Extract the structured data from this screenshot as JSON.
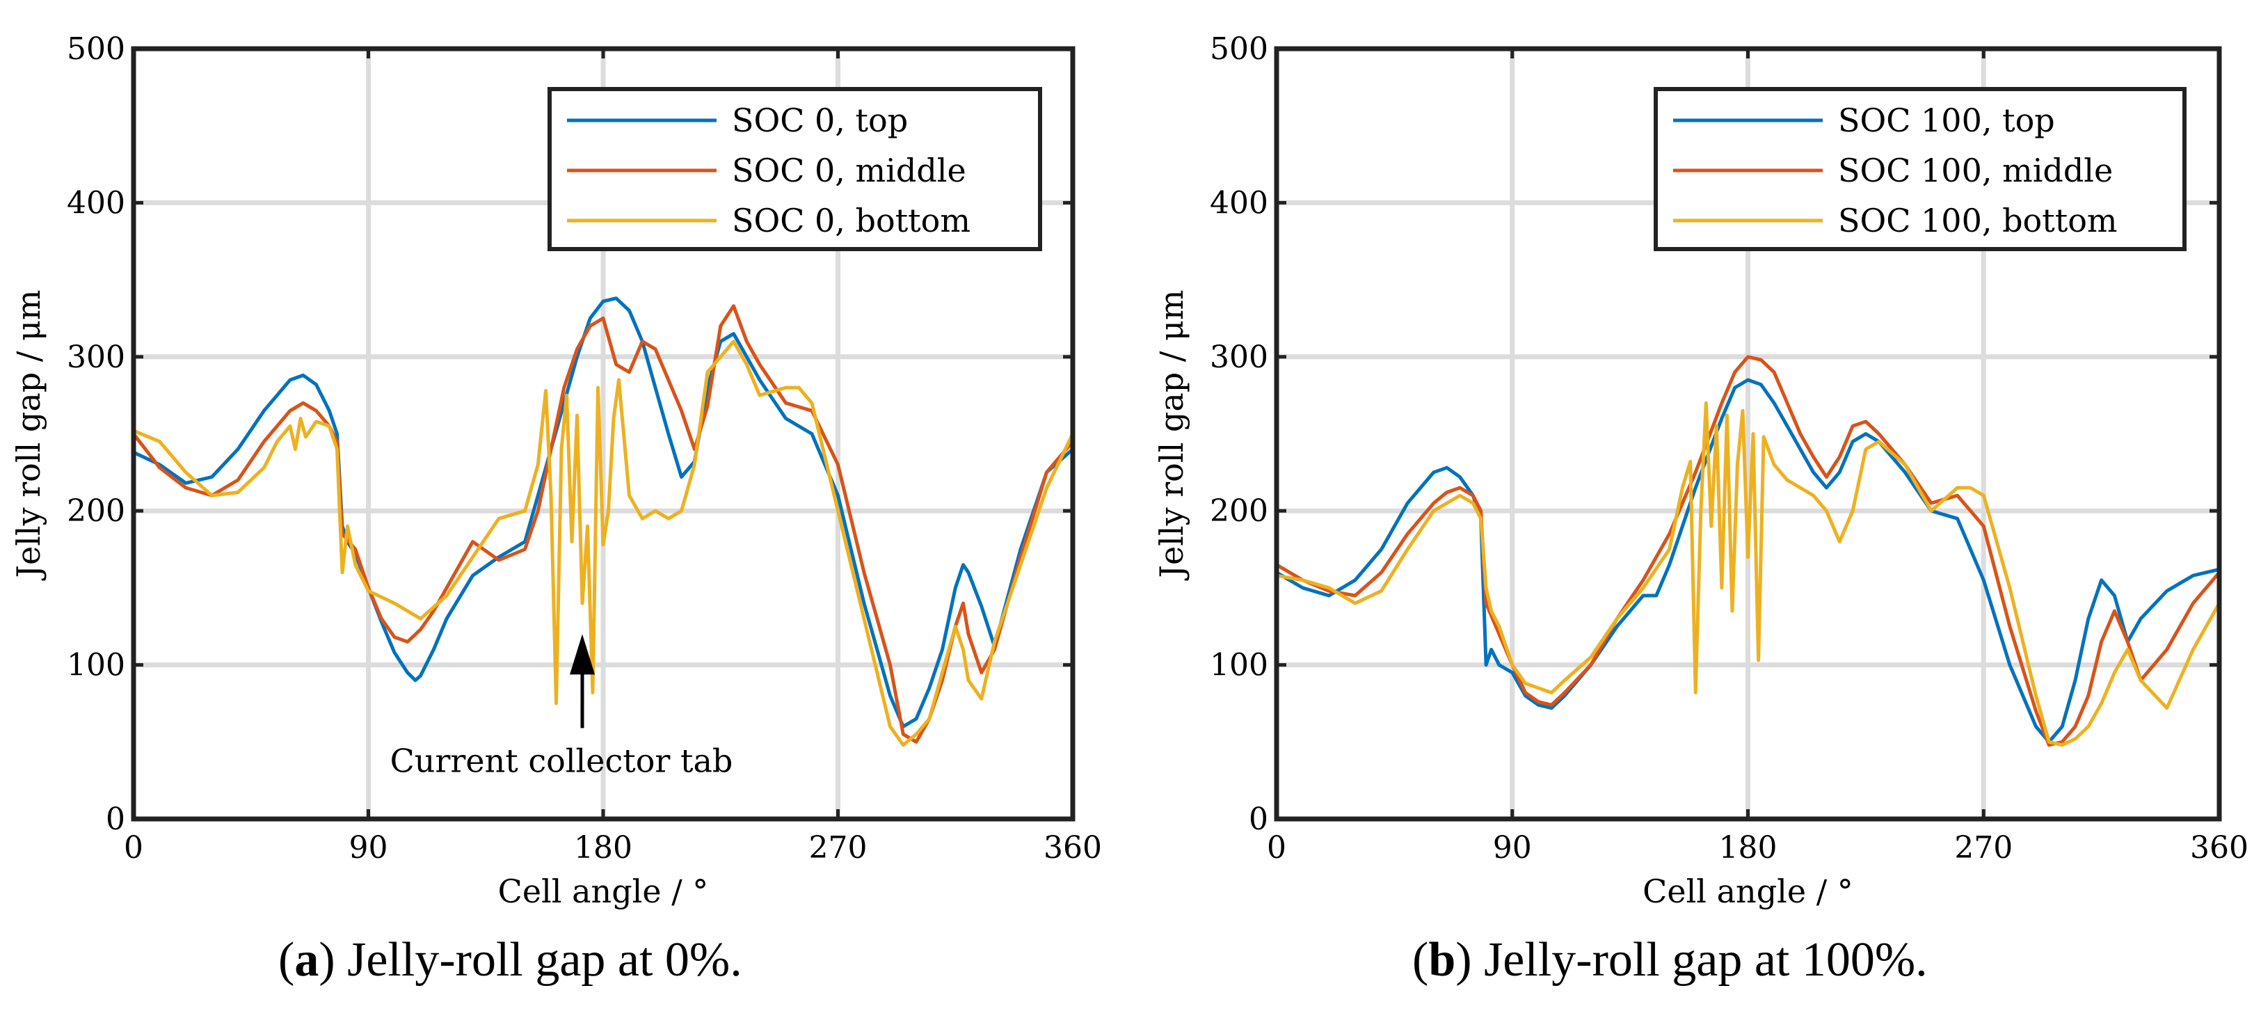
{
  "figure": {
    "captions": [
      {
        "letter": "a",
        "text": " Jelly-roll gap at 0%."
      },
      {
        "letter": "b",
        "text": " Jelly-roll gap at 100%."
      }
    ]
  },
  "colors": {
    "top": "#0072BD",
    "middle": "#D95319",
    "bottom": "#EDB120"
  },
  "chart_data": [
    {
      "type": "line",
      "xlabel": "Cell angle / °",
      "ylabel": "Jelly roll gap / μm",
      "xlim": [
        0,
        360
      ],
      "ylim": [
        0,
        500
      ],
      "xticks": [
        0,
        90,
        180,
        270,
        360
      ],
      "yticks": [
        0,
        100,
        200,
        300,
        400,
        500
      ],
      "grid": true,
      "legend": "top-right",
      "annotation": {
        "text": "Current collector tab",
        "x": 172,
        "y": 120
      },
      "series": [
        {
          "name": "SOC 0, top",
          "color": "#0072BD",
          "x": [
            0,
            10,
            20,
            30,
            40,
            50,
            60,
            65,
            70,
            75,
            78,
            80,
            82,
            85,
            90,
            95,
            100,
            105,
            108,
            110,
            115,
            120,
            130,
            140,
            150,
            155,
            160,
            165,
            170,
            175,
            180,
            185,
            190,
            195,
            200,
            205,
            210,
            215,
            220,
            225,
            230,
            235,
            240,
            250,
            260,
            270,
            280,
            290,
            295,
            300,
            305,
            310,
            315,
            318,
            320,
            325,
            330,
            340,
            350,
            360
          ],
          "y": [
            238,
            230,
            218,
            222,
            240,
            265,
            285,
            288,
            282,
            265,
            250,
            190,
            180,
            172,
            150,
            128,
            108,
            95,
            90,
            93,
            110,
            130,
            158,
            170,
            180,
            210,
            240,
            270,
            300,
            325,
            336,
            338,
            330,
            310,
            280,
            250,
            222,
            232,
            280,
            310,
            315,
            300,
            285,
            260,
            250,
            210,
            140,
            80,
            60,
            65,
            85,
            110,
            150,
            165,
            160,
            138,
            112,
            175,
            225,
            240
          ]
        },
        {
          "name": "SOC 0, middle",
          "color": "#D95319",
          "x": [
            0,
            10,
            20,
            30,
            40,
            50,
            60,
            65,
            70,
            75,
            78,
            80,
            85,
            90,
            95,
            100,
            105,
            110,
            115,
            120,
            130,
            140,
            150,
            155,
            160,
            165,
            170,
            175,
            180,
            185,
            190,
            195,
            200,
            205,
            210,
            215,
            220,
            225,
            230,
            235,
            240,
            250,
            260,
            270,
            280,
            290,
            295,
            300,
            305,
            310,
            315,
            318,
            320,
            325,
            330,
            340,
            350,
            360
          ],
          "y": [
            250,
            228,
            215,
            210,
            220,
            245,
            265,
            270,
            265,
            255,
            245,
            185,
            175,
            150,
            130,
            118,
            115,
            123,
            135,
            150,
            180,
            168,
            175,
            200,
            240,
            280,
            305,
            320,
            325,
            295,
            290,
            310,
            305,
            285,
            265,
            240,
            268,
            320,
            333,
            310,
            295,
            270,
            265,
            230,
            160,
            100,
            55,
            50,
            65,
            90,
            125,
            140,
            120,
            95,
            110,
            170,
            225,
            245
          ]
        },
        {
          "name": "SOC 0, bottom",
          "color": "#EDB120",
          "x": [
            0,
            10,
            20,
            30,
            40,
            50,
            55,
            60,
            62,
            64,
            66,
            70,
            75,
            78,
            80,
            82,
            85,
            90,
            100,
            110,
            120,
            130,
            140,
            150,
            155,
            158,
            160,
            162,
            164,
            166,
            168,
            170,
            172,
            174,
            176,
            178,
            180,
            182,
            184,
            186,
            190,
            195,
            200,
            205,
            210,
            215,
            220,
            225,
            230,
            235,
            240,
            250,
            255,
            260,
            270,
            280,
            290,
            295,
            300,
            305,
            310,
            315,
            318,
            320,
            325,
            330,
            340,
            350,
            360
          ],
          "y": [
            252,
            245,
            225,
            210,
            212,
            228,
            245,
            255,
            240,
            260,
            248,
            258,
            255,
            240,
            160,
            190,
            165,
            148,
            140,
            130,
            145,
            170,
            195,
            200,
            230,
            278,
            210,
            75,
            240,
            275,
            180,
            262,
            140,
            190,
            82,
            280,
            178,
            200,
            260,
            285,
            210,
            195,
            200,
            195,
            200,
            230,
            290,
            300,
            310,
            295,
            275,
            280,
            280,
            270,
            200,
            130,
            60,
            48,
            55,
            65,
            95,
            125,
            110,
            90,
            78,
            115,
            165,
            215,
            250
          ]
        }
      ]
    },
    {
      "type": "line",
      "xlabel": "Cell angle / °",
      "ylabel": "Jelly roll gap / μm",
      "xlim": [
        0,
        360
      ],
      "ylim": [
        0,
        500
      ],
      "xticks": [
        0,
        90,
        180,
        270,
        360
      ],
      "yticks": [
        0,
        100,
        200,
        300,
        400,
        500
      ],
      "grid": true,
      "legend": "top-right",
      "series": [
        {
          "name": "SOC 100, top",
          "color": "#0072BD",
          "x": [
            0,
            10,
            20,
            30,
            40,
            50,
            60,
            65,
            70,
            75,
            78,
            80,
            82,
            85,
            90,
            95,
            100,
            105,
            110,
            120,
            130,
            140,
            145,
            150,
            160,
            170,
            175,
            180,
            185,
            190,
            195,
            200,
            205,
            210,
            215,
            220,
            225,
            230,
            240,
            250,
            260,
            270,
            280,
            290,
            295,
            300,
            305,
            310,
            315,
            320,
            325,
            330,
            340,
            350,
            360
          ],
          "y": [
            160,
            150,
            145,
            155,
            175,
            205,
            225,
            228,
            222,
            210,
            195,
            100,
            110,
            100,
            95,
            80,
            74,
            72,
            80,
            100,
            125,
            145,
            145,
            165,
            215,
            260,
            280,
            285,
            282,
            270,
            255,
            240,
            225,
            215,
            225,
            245,
            250,
            245,
            225,
            200,
            195,
            155,
            100,
            60,
            50,
            60,
            90,
            130,
            155,
            145,
            115,
            130,
            148,
            158,
            162
          ]
        },
        {
          "name": "SOC 100, middle",
          "color": "#D95319",
          "x": [
            0,
            10,
            20,
            30,
            40,
            50,
            60,
            65,
            70,
            75,
            78,
            80,
            82,
            85,
            90,
            95,
            100,
            105,
            110,
            120,
            130,
            140,
            150,
            160,
            170,
            175,
            180,
            185,
            190,
            195,
            200,
            205,
            210,
            215,
            220,
            225,
            230,
            240,
            250,
            260,
            270,
            280,
            290,
            295,
            300,
            305,
            310,
            315,
            320,
            325,
            330,
            340,
            350,
            360
          ],
          "y": [
            165,
            155,
            148,
            145,
            160,
            185,
            205,
            212,
            215,
            210,
            200,
            140,
            132,
            120,
            100,
            82,
            76,
            74,
            82,
            100,
            130,
            155,
            185,
            225,
            270,
            290,
            300,
            298,
            290,
            270,
            250,
            235,
            222,
            235,
            255,
            258,
            250,
            230,
            205,
            210,
            190,
            125,
            70,
            48,
            50,
            60,
            80,
            115,
            135,
            115,
            90,
            110,
            140,
            160
          ]
        },
        {
          "name": "SOC 100, bottom",
          "color": "#EDB120",
          "x": [
            0,
            10,
            20,
            30,
            40,
            50,
            60,
            65,
            70,
            75,
            78,
            80,
            82,
            85,
            90,
            95,
            100,
            105,
            110,
            120,
            130,
            140,
            150,
            155,
            158,
            160,
            162,
            164,
            166,
            168,
            170,
            172,
            174,
            176,
            178,
            180,
            182,
            184,
            186,
            190,
            195,
            200,
            205,
            210,
            215,
            220,
            225,
            230,
            240,
            250,
            260,
            265,
            270,
            280,
            290,
            295,
            300,
            305,
            310,
            315,
            320,
            325,
            330,
            340,
            350,
            360
          ],
          "y": [
            158,
            155,
            150,
            140,
            148,
            175,
            200,
            205,
            210,
            205,
            195,
            150,
            135,
            125,
            100,
            88,
            85,
            82,
            90,
            105,
            130,
            150,
            175,
            215,
            232,
            82,
            200,
            270,
            190,
            255,
            150,
            262,
            135,
            230,
            265,
            170,
            250,
            103,
            248,
            230,
            220,
            215,
            210,
            200,
            180,
            200,
            240,
            245,
            230,
            200,
            215,
            215,
            210,
            150,
            80,
            50,
            48,
            52,
            60,
            75,
            95,
            110,
            90,
            72,
            110,
            140
          ]
        }
      ]
    }
  ]
}
